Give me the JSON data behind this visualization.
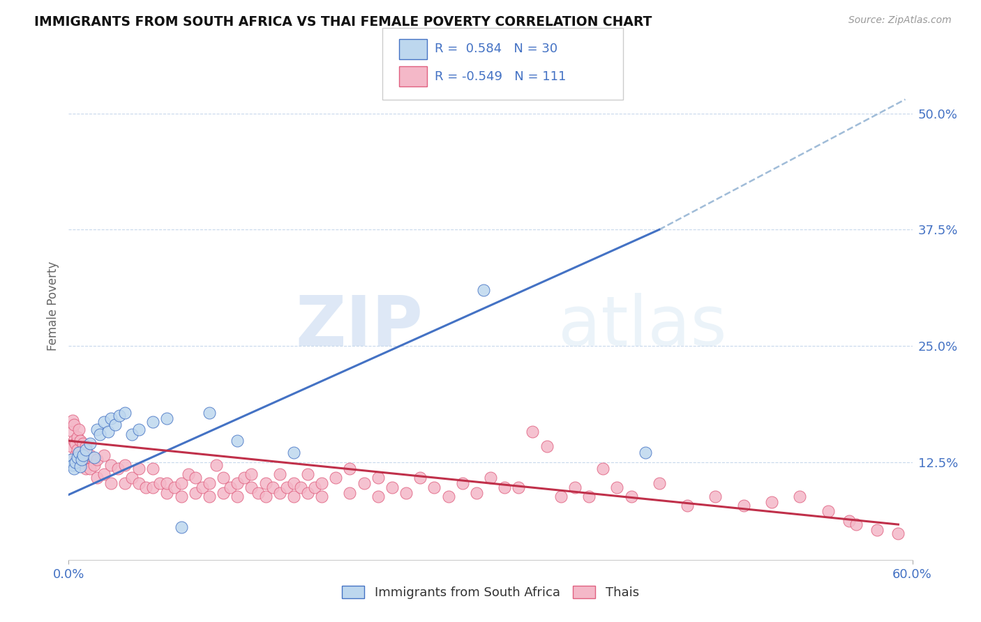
{
  "title": "IMMIGRANTS FROM SOUTH AFRICA VS THAI FEMALE POVERTY CORRELATION CHART",
  "source": "Source: ZipAtlas.com",
  "ylabel": "Female Poverty",
  "ytick_labels": [
    "12.5%",
    "25.0%",
    "37.5%",
    "50.0%"
  ],
  "ytick_values": [
    0.125,
    0.25,
    0.375,
    0.5
  ],
  "xlim": [
    0.0,
    0.6
  ],
  "ylim": [
    0.02,
    0.565
  ],
  "watermark_zip": "ZIP",
  "watermark_atlas": "atlas",
  "legend_blue_r": "0.584",
  "legend_blue_n": "30",
  "legend_pink_r": "-0.549",
  "legend_pink_n": "111",
  "legend_label_blue": "Immigrants from South Africa",
  "legend_label_pink": "Thais",
  "blue_fill": "#bdd7ee",
  "pink_fill": "#f4b8c8",
  "blue_edge": "#4472c4",
  "pink_edge": "#e06080",
  "blue_line_color": "#4472c4",
  "pink_line_color": "#c0304a",
  "dashed_line_color": "#a0bcd8",
  "scatter_blue": [
    [
      0.002,
      0.128
    ],
    [
      0.003,
      0.122
    ],
    [
      0.004,
      0.118
    ],
    [
      0.005,
      0.125
    ],
    [
      0.006,
      0.13
    ],
    [
      0.007,
      0.135
    ],
    [
      0.008,
      0.12
    ],
    [
      0.009,
      0.128
    ],
    [
      0.01,
      0.132
    ],
    [
      0.012,
      0.138
    ],
    [
      0.015,
      0.145
    ],
    [
      0.018,
      0.13
    ],
    [
      0.02,
      0.16
    ],
    [
      0.022,
      0.155
    ],
    [
      0.025,
      0.168
    ],
    [
      0.028,
      0.158
    ],
    [
      0.03,
      0.172
    ],
    [
      0.033,
      0.165
    ],
    [
      0.036,
      0.175
    ],
    [
      0.04,
      0.178
    ],
    [
      0.045,
      0.155
    ],
    [
      0.05,
      0.16
    ],
    [
      0.06,
      0.168
    ],
    [
      0.07,
      0.172
    ],
    [
      0.08,
      0.055
    ],
    [
      0.1,
      0.178
    ],
    [
      0.12,
      0.148
    ],
    [
      0.16,
      0.135
    ],
    [
      0.295,
      0.31
    ],
    [
      0.41,
      0.135
    ]
  ],
  "scatter_pink": [
    [
      0.002,
      0.142
    ],
    [
      0.003,
      0.158
    ],
    [
      0.003,
      0.17
    ],
    [
      0.004,
      0.148
    ],
    [
      0.004,
      0.165
    ],
    [
      0.005,
      0.132
    ],
    [
      0.005,
      0.145
    ],
    [
      0.006,
      0.138
    ],
    [
      0.006,
      0.152
    ],
    [
      0.007,
      0.128
    ],
    [
      0.007,
      0.16
    ],
    [
      0.008,
      0.125
    ],
    [
      0.008,
      0.148
    ],
    [
      0.009,
      0.132
    ],
    [
      0.01,
      0.128
    ],
    [
      0.01,
      0.145
    ],
    [
      0.012,
      0.118
    ],
    [
      0.012,
      0.142
    ],
    [
      0.015,
      0.118
    ],
    [
      0.015,
      0.132
    ],
    [
      0.018,
      0.122
    ],
    [
      0.02,
      0.108
    ],
    [
      0.02,
      0.128
    ],
    [
      0.025,
      0.112
    ],
    [
      0.025,
      0.132
    ],
    [
      0.03,
      0.102
    ],
    [
      0.03,
      0.122
    ],
    [
      0.035,
      0.118
    ],
    [
      0.04,
      0.102
    ],
    [
      0.04,
      0.122
    ],
    [
      0.045,
      0.108
    ],
    [
      0.05,
      0.102
    ],
    [
      0.05,
      0.118
    ],
    [
      0.055,
      0.098
    ],
    [
      0.06,
      0.098
    ],
    [
      0.06,
      0.118
    ],
    [
      0.065,
      0.102
    ],
    [
      0.07,
      0.092
    ],
    [
      0.07,
      0.102
    ],
    [
      0.075,
      0.098
    ],
    [
      0.08,
      0.088
    ],
    [
      0.08,
      0.102
    ],
    [
      0.085,
      0.112
    ],
    [
      0.09,
      0.092
    ],
    [
      0.09,
      0.108
    ],
    [
      0.095,
      0.098
    ],
    [
      0.1,
      0.088
    ],
    [
      0.1,
      0.102
    ],
    [
      0.105,
      0.122
    ],
    [
      0.11,
      0.092
    ],
    [
      0.11,
      0.108
    ],
    [
      0.115,
      0.098
    ],
    [
      0.12,
      0.088
    ],
    [
      0.12,
      0.102
    ],
    [
      0.125,
      0.108
    ],
    [
      0.13,
      0.098
    ],
    [
      0.13,
      0.112
    ],
    [
      0.135,
      0.092
    ],
    [
      0.14,
      0.088
    ],
    [
      0.14,
      0.102
    ],
    [
      0.145,
      0.098
    ],
    [
      0.15,
      0.092
    ],
    [
      0.15,
      0.112
    ],
    [
      0.155,
      0.098
    ],
    [
      0.16,
      0.088
    ],
    [
      0.16,
      0.102
    ],
    [
      0.165,
      0.098
    ],
    [
      0.17,
      0.092
    ],
    [
      0.17,
      0.112
    ],
    [
      0.175,
      0.098
    ],
    [
      0.18,
      0.088
    ],
    [
      0.18,
      0.102
    ],
    [
      0.19,
      0.108
    ],
    [
      0.2,
      0.092
    ],
    [
      0.2,
      0.118
    ],
    [
      0.21,
      0.102
    ],
    [
      0.22,
      0.088
    ],
    [
      0.22,
      0.108
    ],
    [
      0.23,
      0.098
    ],
    [
      0.24,
      0.092
    ],
    [
      0.25,
      0.108
    ],
    [
      0.26,
      0.098
    ],
    [
      0.27,
      0.088
    ],
    [
      0.28,
      0.102
    ],
    [
      0.29,
      0.092
    ],
    [
      0.3,
      0.108
    ],
    [
      0.31,
      0.098
    ],
    [
      0.32,
      0.098
    ],
    [
      0.33,
      0.158
    ],
    [
      0.34,
      0.142
    ],
    [
      0.35,
      0.088
    ],
    [
      0.36,
      0.098
    ],
    [
      0.37,
      0.088
    ],
    [
      0.38,
      0.118
    ],
    [
      0.39,
      0.098
    ],
    [
      0.4,
      0.088
    ],
    [
      0.42,
      0.102
    ],
    [
      0.44,
      0.078
    ],
    [
      0.46,
      0.088
    ],
    [
      0.48,
      0.078
    ],
    [
      0.5,
      0.082
    ],
    [
      0.52,
      0.088
    ],
    [
      0.54,
      0.072
    ],
    [
      0.555,
      0.062
    ],
    [
      0.56,
      0.058
    ],
    [
      0.575,
      0.052
    ],
    [
      0.59,
      0.048
    ]
  ],
  "blue_line_x": [
    0.0,
    0.42
  ],
  "blue_line_y": [
    0.09,
    0.375
  ],
  "pink_line_x": [
    0.0,
    0.59
  ],
  "pink_line_y": [
    0.148,
    0.058
  ],
  "dashed_line_x": [
    0.42,
    0.595
  ],
  "dashed_line_y": [
    0.375,
    0.515
  ]
}
